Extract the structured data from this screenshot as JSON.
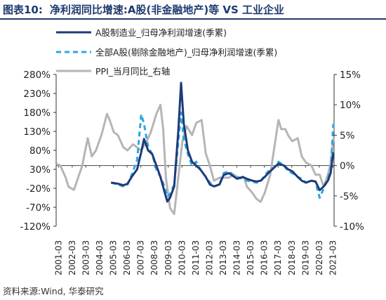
{
  "header": {
    "label": "图表10:",
    "title": "净利润同比增速:A股(非金融地产)等 VS 工业企业"
  },
  "footer": {
    "source": "资料来源:Wind, 华泰研究"
  },
  "colors": {
    "manufacturing": "#1f3a7a",
    "all_a": "#29a9e0",
    "ppi": "#b5b5b5",
    "title": "#1f3a6e"
  },
  "chart_data": {
    "type": "line",
    "title": "净利润同比增速:A股(非金融地产)等 VS 工业企业",
    "left_axis": {
      "min": -120,
      "max": 280,
      "ticks": [
        "280%",
        "230%",
        "180%",
        "130%",
        "80%",
        "30%",
        "-20%",
        "-70%",
        "-120%"
      ]
    },
    "right_axis": {
      "min": -10,
      "max": 15,
      "ticks": [
        "15%",
        "10%",
        "5%",
        "0%",
        "-5%",
        "-10%"
      ]
    },
    "x_ticks": [
      "2001-03",
      "2002-03",
      "2003-03",
      "2004-03",
      "2005-03",
      "2006-03",
      "2007-03",
      "2008-03",
      "2009-03",
      "2010-03",
      "2011-03",
      "2012-03",
      "2013-03",
      "2014-03",
      "2015-03",
      "2016-03",
      "2017-03",
      "2018-03",
      "2019-03",
      "2020-03",
      "2021-03"
    ],
    "legend": [
      {
        "name": "A股制造业_归母净利润增速(季累)",
        "style": "solid",
        "color": "#1f3a7a"
      },
      {
        "name": "全部A股(剔除金融地产)_归母净利润增速(季累)",
        "style": "dashed",
        "color": "#29a9e0"
      },
      {
        "name": "PPI_当月同比_右轴",
        "style": "solid",
        "color": "#b5b5b5"
      }
    ],
    "series": [
      {
        "name": "A股制造业_归母净利润增速(季累)",
        "axis": "left",
        "points": [
          [
            2005.0,
            -5
          ],
          [
            2005.5,
            -8
          ],
          [
            2005.9,
            -12
          ],
          [
            2006.2,
            -8
          ],
          [
            2006.5,
            10
          ],
          [
            2006.9,
            30
          ],
          [
            2007.2,
            75
          ],
          [
            2007.4,
            110
          ],
          [
            2007.7,
            80
          ],
          [
            2008.0,
            70
          ],
          [
            2008.3,
            40
          ],
          [
            2008.6,
            10
          ],
          [
            2008.9,
            -30
          ],
          [
            2009.1,
            -55
          ],
          [
            2009.3,
            -45
          ],
          [
            2009.6,
            -15
          ],
          [
            2009.9,
            130
          ],
          [
            2010.1,
            258
          ],
          [
            2010.3,
            150
          ],
          [
            2010.6,
            80
          ],
          [
            2010.9,
            50
          ],
          [
            2011.2,
            40
          ],
          [
            2011.5,
            30
          ],
          [
            2011.9,
            10
          ],
          [
            2012.2,
            -10
          ],
          [
            2012.5,
            -15
          ],
          [
            2012.9,
            -10
          ],
          [
            2013.2,
            15
          ],
          [
            2013.6,
            20
          ],
          [
            2013.9,
            12
          ],
          [
            2014.2,
            5
          ],
          [
            2014.6,
            10
          ],
          [
            2014.9,
            5
          ],
          [
            2015.3,
            0
          ],
          [
            2015.6,
            -2
          ],
          [
            2015.9,
            0
          ],
          [
            2016.2,
            10
          ],
          [
            2016.6,
            25
          ],
          [
            2016.9,
            35
          ],
          [
            2017.2,
            45
          ],
          [
            2017.6,
            40
          ],
          [
            2017.9,
            30
          ],
          [
            2018.2,
            25
          ],
          [
            2018.6,
            10
          ],
          [
            2018.9,
            0
          ],
          [
            2019.2,
            -5
          ],
          [
            2019.6,
            0
          ],
          [
            2019.9,
            -2
          ],
          [
            2020.2,
            -25
          ],
          [
            2020.5,
            -15
          ],
          [
            2020.8,
            0
          ],
          [
            2021.0,
            20
          ],
          [
            2021.2,
            75
          ]
        ]
      },
      {
        "name": "全部A股(剔除金融地产)_归母净利润增速(季累)",
        "axis": "left",
        "points": [
          [
            2005.0,
            -5
          ],
          [
            2005.5,
            -10
          ],
          [
            2005.9,
            -15
          ],
          [
            2006.2,
            -10
          ],
          [
            2006.5,
            15
          ],
          [
            2006.9,
            55
          ],
          [
            2007.2,
            175
          ],
          [
            2007.4,
            150
          ],
          [
            2007.7,
            90
          ],
          [
            2008.0,
            70
          ],
          [
            2008.3,
            30
          ],
          [
            2008.6,
            10
          ],
          [
            2008.9,
            -15
          ],
          [
            2009.1,
            -42
          ],
          [
            2009.3,
            -35
          ],
          [
            2009.6,
            -10
          ],
          [
            2009.9,
            100
          ],
          [
            2010.1,
            180
          ],
          [
            2010.3,
            110
          ],
          [
            2010.6,
            70
          ],
          [
            2010.9,
            40
          ],
          [
            2011.2,
            50
          ],
          [
            2011.5,
            30
          ],
          [
            2011.9,
            10
          ],
          [
            2012.2,
            -5
          ],
          [
            2012.5,
            -15
          ],
          [
            2012.9,
            -10
          ],
          [
            2013.2,
            20
          ],
          [
            2013.6,
            25
          ],
          [
            2013.9,
            15
          ],
          [
            2014.2,
            10
          ],
          [
            2014.6,
            5
          ],
          [
            2014.9,
            0
          ],
          [
            2015.3,
            -3
          ],
          [
            2015.6,
            -5
          ],
          [
            2015.9,
            -3
          ],
          [
            2016.2,
            15
          ],
          [
            2016.6,
            30
          ],
          [
            2016.9,
            35
          ],
          [
            2017.2,
            50
          ],
          [
            2017.6,
            40
          ],
          [
            2017.9,
            25
          ],
          [
            2018.2,
            20
          ],
          [
            2018.6,
            10
          ],
          [
            2018.9,
            5
          ],
          [
            2019.2,
            -5
          ],
          [
            2019.6,
            0
          ],
          [
            2019.9,
            -3
          ],
          [
            2020.2,
            -45
          ],
          [
            2020.5,
            -20
          ],
          [
            2020.8,
            5
          ],
          [
            2021.0,
            30
          ],
          [
            2021.2,
            150
          ]
        ]
      },
      {
        "name": "PPI_当月同比_右轴",
        "axis": "right",
        "points": [
          [
            2001.0,
            0.3
          ],
          [
            2001.3,
            0
          ],
          [
            2001.7,
            -2
          ],
          [
            2001.9,
            -3.5
          ],
          [
            2002.3,
            -4
          ],
          [
            2002.6,
            -2
          ],
          [
            2002.9,
            0
          ],
          [
            2003.3,
            4.5
          ],
          [
            2003.6,
            1.5
          ],
          [
            2003.9,
            2.5
          ],
          [
            2004.3,
            5
          ],
          [
            2004.7,
            8.5
          ],
          [
            2004.9,
            7.5
          ],
          [
            2005.2,
            5.5
          ],
          [
            2005.5,
            5
          ],
          [
            2005.9,
            3
          ],
          [
            2006.2,
            2.5
          ],
          [
            2006.6,
            3.5
          ],
          [
            2006.9,
            3
          ],
          [
            2007.2,
            2.5
          ],
          [
            2007.6,
            4
          ],
          [
            2007.9,
            5.5
          ],
          [
            2008.3,
            8.5
          ],
          [
            2008.6,
            10
          ],
          [
            2008.8,
            6
          ],
          [
            2009.0,
            -2
          ],
          [
            2009.3,
            -7
          ],
          [
            2009.6,
            -8
          ],
          [
            2009.9,
            -2
          ],
          [
            2010.2,
            4
          ],
          [
            2010.5,
            6.5
          ],
          [
            2010.9,
            5
          ],
          [
            2011.2,
            7
          ],
          [
            2011.6,
            7.5
          ],
          [
            2011.9,
            2
          ],
          [
            2012.2,
            0
          ],
          [
            2012.5,
            -2.5
          ],
          [
            2012.9,
            -2
          ],
          [
            2013.2,
            -2
          ],
          [
            2013.6,
            -2
          ],
          [
            2013.9,
            -1.5
          ],
          [
            2014.3,
            -2
          ],
          [
            2014.7,
            -2
          ],
          [
            2014.9,
            -3.5
          ],
          [
            2015.3,
            -4.5
          ],
          [
            2015.6,
            -5.5
          ],
          [
            2015.9,
            -6
          ],
          [
            2016.2,
            -4.5
          ],
          [
            2016.6,
            -1.5
          ],
          [
            2016.9,
            3
          ],
          [
            2017.2,
            7.5
          ],
          [
            2017.4,
            6
          ],
          [
            2017.7,
            6
          ],
          [
            2017.9,
            5
          ],
          [
            2018.2,
            4
          ],
          [
            2018.6,
            4.5
          ],
          [
            2018.9,
            1.5
          ],
          [
            2019.2,
            0.5
          ],
          [
            2019.6,
            0
          ],
          [
            2019.9,
            -1.5
          ],
          [
            2020.2,
            -1.5
          ],
          [
            2020.5,
            -3.5
          ],
          [
            2020.8,
            -1.5
          ],
          [
            2021.0,
            0.3
          ],
          [
            2021.2,
            4.5
          ]
        ]
      }
    ]
  }
}
